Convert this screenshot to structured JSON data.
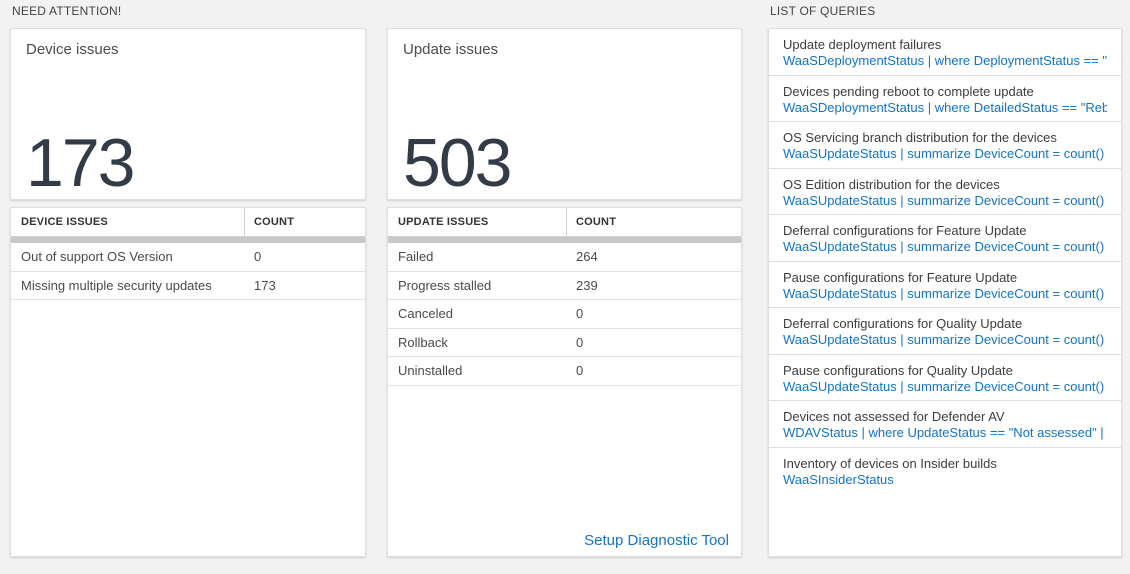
{
  "colors": {
    "page_background": "#f2f2f2",
    "card_background": "#ffffff",
    "link_blue": "#1374c5",
    "big_number": "#333b47",
    "scrollbar_gray": "#c8c8c8"
  },
  "need_attention": {
    "label": "NEED ATTENTION!",
    "device_tile": {
      "title": "Device issues",
      "value": "173"
    },
    "update_tile": {
      "title": "Update issues",
      "value": "503"
    },
    "device_table": {
      "headers": [
        "DEVICE ISSUES",
        "COUNT"
      ],
      "rows": [
        {
          "issue": "Out of support OS Version",
          "count": "0"
        },
        {
          "issue": "Missing multiple security updates",
          "count": "173"
        }
      ]
    },
    "update_table": {
      "headers": [
        "UPDATE ISSUES",
        "COUNT"
      ],
      "rows": [
        {
          "issue": "Failed",
          "count": "264"
        },
        {
          "issue": "Progress stalled",
          "count": "239"
        },
        {
          "issue": "Canceled",
          "count": "0"
        },
        {
          "issue": "Rollback",
          "count": "0"
        },
        {
          "issue": "Uninstalled",
          "count": "0"
        }
      ],
      "footer_link": "Setup Diagnostic Tool"
    }
  },
  "queries": {
    "label": "LIST OF QUERIES",
    "items": [
      {
        "title": "Update deployment failures",
        "query": "WaaSDeploymentStatus | where DeploymentStatus == \"Failed\" |..."
      },
      {
        "title": "Devices pending reboot to complete update",
        "query": "WaaSDeploymentStatus | where DetailedStatus == \"Reboot pend..."
      },
      {
        "title": "OS Servicing branch distribution for the devices",
        "query": "WaaSUpdateStatus | summarize DeviceCount = count() by OSSer..."
      },
      {
        "title": "OS Edition distribution for the devices",
        "query": "WaaSUpdateStatus | summarize DeviceCount = count() by OSEdit..."
      },
      {
        "title": "Deferral configurations for Feature Update",
        "query": "WaaSUpdateStatus | summarize DeviceCount = count() by Featur..."
      },
      {
        "title": "Pause configurations for Feature Update",
        "query": "WaaSUpdateStatus | summarize DeviceCount = count() by Featur..."
      },
      {
        "title": "Deferral configurations for Quality Update",
        "query": "WaaSUpdateStatus | summarize DeviceCount = count() by Qualit..."
      },
      {
        "title": "Pause configurations for Quality Update",
        "query": "WaaSUpdateStatus | summarize DeviceCount = count() by Qualit..."
      },
      {
        "title": "Devices not assessed for Defender AV",
        "query": "WDAVStatus | where UpdateStatus == \"Not assessed\" | render ta..."
      },
      {
        "title": "Inventory of devices on Insider builds",
        "query": "WaaSInsiderStatus"
      }
    ]
  }
}
